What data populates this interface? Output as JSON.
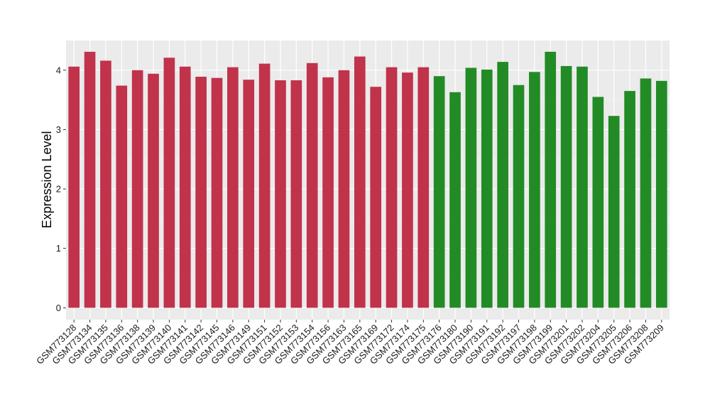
{
  "chart_data": {
    "type": "bar",
    "title": "",
    "xlabel": "",
    "ylabel": "Expression Level",
    "ylim": [
      -0.2,
      4.5
    ],
    "yticks": [
      0,
      1,
      2,
      3,
      4
    ],
    "grid": true,
    "legend": "none",
    "panel_background": "#ebebeb",
    "series_colors": {
      "group1": "#c0334a",
      "group2": "#238b25"
    },
    "categories": [
      "GSM773128",
      "GSM773134",
      "GSM773135",
      "GSM773136",
      "GSM773138",
      "GSM773139",
      "GSM773140",
      "GSM773141",
      "GSM773142",
      "GSM773145",
      "GSM773146",
      "GSM773149",
      "GSM773151",
      "GSM773152",
      "GSM773153",
      "GSM773154",
      "GSM773156",
      "GSM773163",
      "GSM773165",
      "GSM773169",
      "GSM773172",
      "GSM773174",
      "GSM773175",
      "GSM773176",
      "GSM773180",
      "GSM773190",
      "GSM773191",
      "GSM773192",
      "GSM773197",
      "GSM773198",
      "GSM773199",
      "GSM773201",
      "GSM773202",
      "GSM773204",
      "GSM773205",
      "GSM773206",
      "GSM773208",
      "GSM773209"
    ],
    "values": [
      4.06,
      4.31,
      4.16,
      3.74,
      4.0,
      3.94,
      4.21,
      4.06,
      3.89,
      3.87,
      4.05,
      3.84,
      4.11,
      3.83,
      3.83,
      4.12,
      3.88,
      4.0,
      4.23,
      3.72,
      4.05,
      3.96,
      4.05,
      3.9,
      3.63,
      4.04,
      4.01,
      4.14,
      3.75,
      3.97,
      4.31,
      4.07,
      4.06,
      3.55,
      3.23,
      3.65,
      3.86,
      3.82
    ],
    "groups": [
      1,
      1,
      1,
      1,
      1,
      1,
      1,
      1,
      1,
      1,
      1,
      1,
      1,
      1,
      1,
      1,
      1,
      1,
      1,
      1,
      1,
      1,
      1,
      2,
      2,
      2,
      2,
      2,
      2,
      2,
      2,
      2,
      2,
      2,
      2,
      2,
      2,
      2
    ]
  }
}
